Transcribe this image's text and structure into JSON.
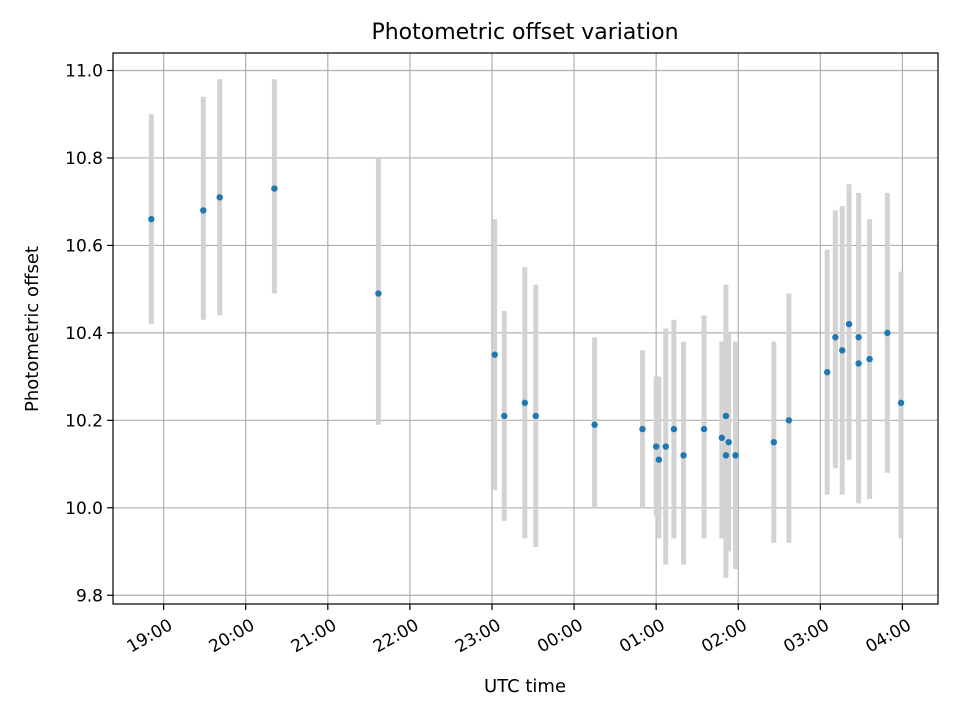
{
  "chart_data": {
    "type": "scatter",
    "title": "Photometric offset variation",
    "xlabel": "UTC time",
    "ylabel": "Photometric offset",
    "x_tick_labels": [
      "19:00",
      "20:00",
      "21:00",
      "22:00",
      "23:00",
      "00:00",
      "01:00",
      "02:00",
      "03:00",
      "04:00"
    ],
    "x_ticks": [
      "19:00",
      "20:00",
      "21:00",
      "22:00",
      "23:00",
      "00:00",
      "01:00",
      "02:00",
      "03:00",
      "04:00"
    ],
    "xlim": [
      "18:23",
      "04:26"
    ],
    "y_ticks": [
      9.8,
      10.0,
      10.2,
      10.4,
      10.6,
      10.8,
      11.0
    ],
    "y_tick_labels": [
      "9.8",
      "10.0",
      "10.2",
      "10.4",
      "10.6",
      "10.8",
      "11.0"
    ],
    "ylim": [
      9.78,
      11.04
    ],
    "grid": true,
    "marker_color": "#1f77b4",
    "errorbar_color": "#d3d3d3",
    "points": [
      {
        "t": "18:51",
        "y": 10.66,
        "ylow": 10.42,
        "yhigh": 10.9
      },
      {
        "t": "19:29",
        "y": 10.68,
        "ylow": 10.43,
        "yhigh": 10.94
      },
      {
        "t": "19:41",
        "y": 10.71,
        "ylow": 10.44,
        "yhigh": 10.98
      },
      {
        "t": "20:21",
        "y": 10.73,
        "ylow": 10.49,
        "yhigh": 10.98
      },
      {
        "t": "21:37",
        "y": 10.49,
        "ylow": 10.19,
        "yhigh": 10.8
      },
      {
        "t": "23:02",
        "y": 10.35,
        "ylow": 10.04,
        "yhigh": 10.66
      },
      {
        "t": "23:09",
        "y": 10.21,
        "ylow": 9.97,
        "yhigh": 10.45
      },
      {
        "t": "23:24",
        "y": 10.24,
        "ylow": 9.93,
        "yhigh": 10.55
      },
      {
        "t": "23:32",
        "y": 10.21,
        "ylow": 9.91,
        "yhigh": 10.51
      },
      {
        "t": "00:15",
        "y": 10.19,
        "ylow": 10.0,
        "yhigh": 10.39
      },
      {
        "t": "00:50",
        "y": 10.18,
        "ylow": 10.0,
        "yhigh": 10.36
      },
      {
        "t": "01:00",
        "y": 10.14,
        "ylow": 9.98,
        "yhigh": 10.3
      },
      {
        "t": "01:02",
        "y": 10.11,
        "ylow": 9.93,
        "yhigh": 10.3
      },
      {
        "t": "01:07",
        "y": 10.14,
        "ylow": 9.87,
        "yhigh": 10.41
      },
      {
        "t": "01:13",
        "y": 10.18,
        "ylow": 9.93,
        "yhigh": 10.43
      },
      {
        "t": "01:20",
        "y": 10.12,
        "ylow": 9.87,
        "yhigh": 10.38
      },
      {
        "t": "01:35",
        "y": 10.18,
        "ylow": 9.93,
        "yhigh": 10.44
      },
      {
        "t": "01:48",
        "y": 10.16,
        "ylow": 9.93,
        "yhigh": 10.38
      },
      {
        "t": "01:51",
        "y": 10.21,
        "ylow": 9.92,
        "yhigh": 10.51
      },
      {
        "t": "01:51",
        "y": 10.12,
        "ylow": 9.84,
        "yhigh": 10.41
      },
      {
        "t": "01:53",
        "y": 10.15,
        "ylow": 9.9,
        "yhigh": 10.4
      },
      {
        "t": "01:58",
        "y": 10.12,
        "ylow": 9.86,
        "yhigh": 10.38
      },
      {
        "t": "02:26",
        "y": 10.15,
        "ylow": 9.92,
        "yhigh": 10.38
      },
      {
        "t": "02:37",
        "y": 10.2,
        "ylow": 9.92,
        "yhigh": 10.49
      },
      {
        "t": "03:05",
        "y": 10.31,
        "ylow": 10.03,
        "yhigh": 10.59
      },
      {
        "t": "03:11",
        "y": 10.39,
        "ylow": 10.09,
        "yhigh": 10.68
      },
      {
        "t": "03:16",
        "y": 10.36,
        "ylow": 10.03,
        "yhigh": 10.69
      },
      {
        "t": "03:21",
        "y": 10.42,
        "ylow": 10.11,
        "yhigh": 10.74
      },
      {
        "t": "03:28",
        "y": 10.39,
        "ylow": 10.05,
        "yhigh": 10.72
      },
      {
        "t": "03:28",
        "y": 10.33,
        "ylow": 10.01,
        "yhigh": 10.66
      },
      {
        "t": "03:36",
        "y": 10.34,
        "ylow": 10.02,
        "yhigh": 10.66
      },
      {
        "t": "03:49",
        "y": 10.4,
        "ylow": 10.08,
        "yhigh": 10.72
      },
      {
        "t": "03:59",
        "y": 10.24,
        "ylow": 9.93,
        "yhigh": 10.54
      }
    ]
  }
}
